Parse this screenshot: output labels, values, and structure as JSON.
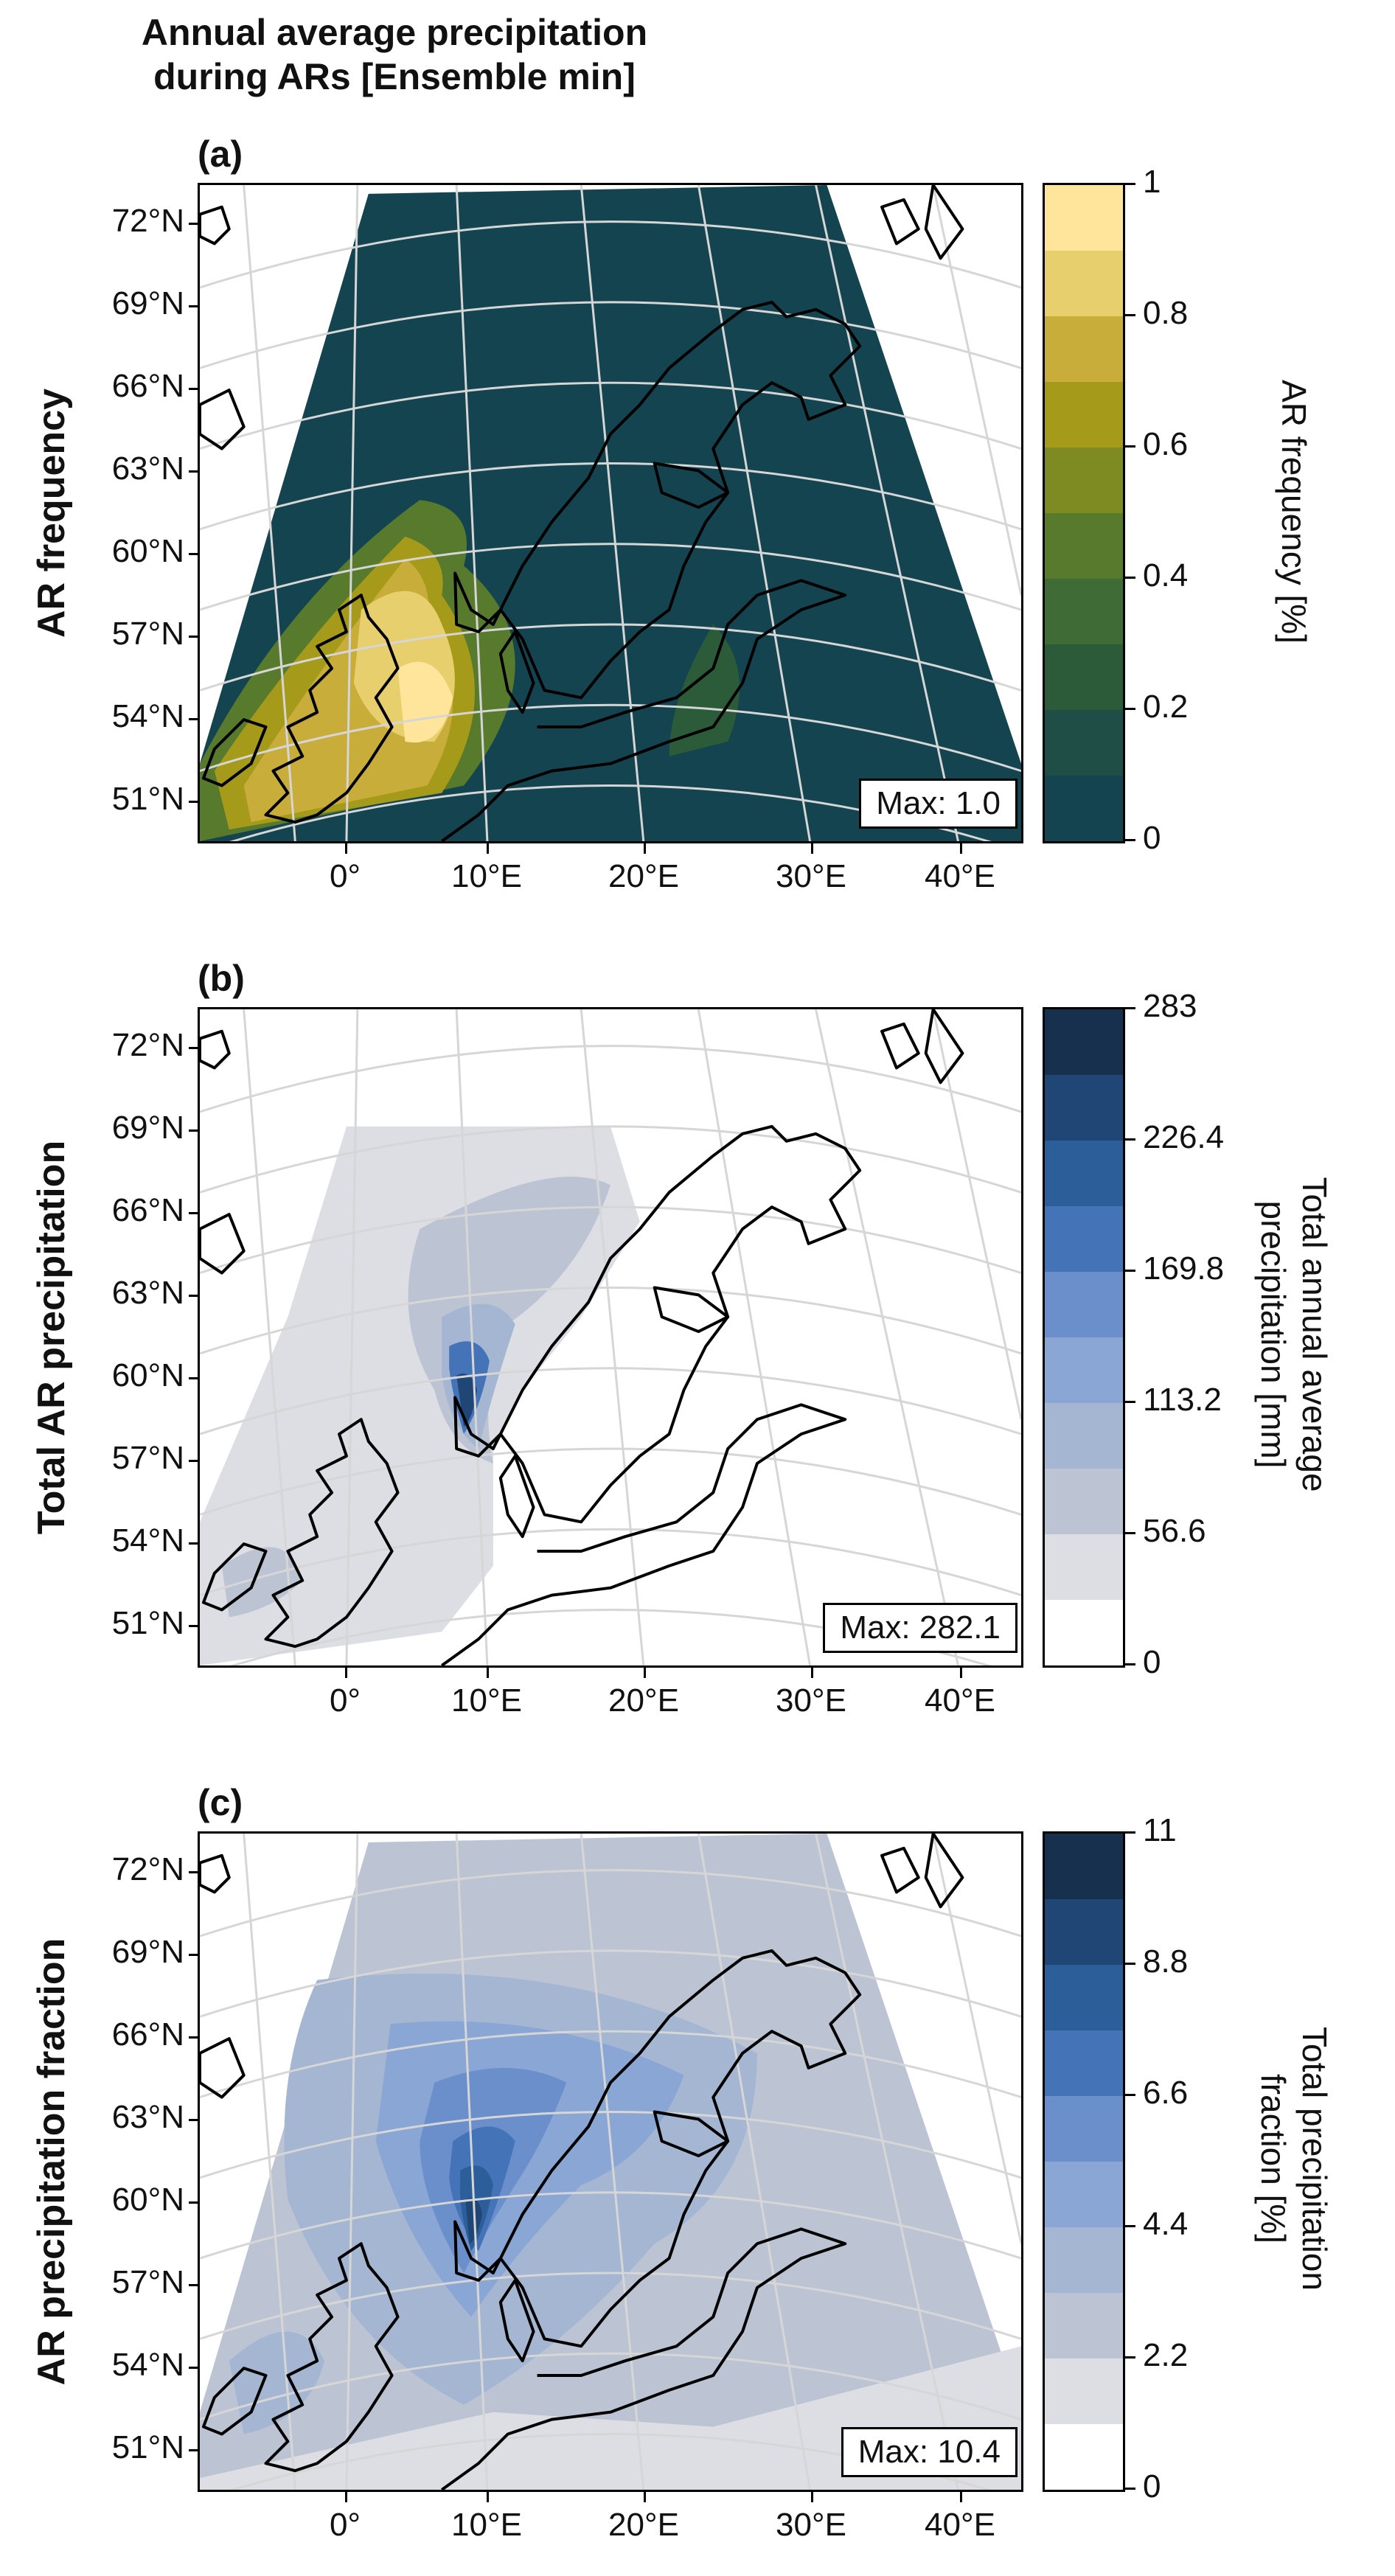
{
  "figure": {
    "title_line1": "Annual average precipitation",
    "title_line2": "during ARs [Ensemble min]"
  },
  "axes": {
    "lat_labels": [
      "72°N",
      "69°N",
      "66°N",
      "63°N",
      "60°N",
      "57°N",
      "54°N",
      "51°N"
    ],
    "lon_labels": [
      "0°",
      "10°E",
      "20°E",
      "30°E",
      "40°E"
    ]
  },
  "panels": [
    {
      "id": "a",
      "letter": "(a)",
      "row_label": "AR frequency",
      "colorbar_label": "AR frequency [%]",
      "colorbar_ticks": [
        "1",
        "0.8",
        "0.6",
        "0.4",
        "0.2",
        "0"
      ],
      "colors": [
        "#ffe59b",
        "#e8cf6d",
        "#c9ad3b",
        "#a59a1a",
        "#7d8b22",
        "#577a2d",
        "#3f6b36",
        "#2c5b3a",
        "#1f4e46",
        "#134450"
      ],
      "max_text": "Max: 1.0"
    },
    {
      "id": "b",
      "letter": "(b)",
      "row_label": "Total AR precipitation",
      "colorbar_label_line1": "Total annual average",
      "colorbar_label_line2": "precipitation [mm]",
      "colorbar_ticks": [
        "283",
        "226.4",
        "169.8",
        "113.2",
        "56.6",
        "0"
      ],
      "colors": [
        "#16304e",
        "#1f4675",
        "#2c5f9a",
        "#4474b7",
        "#6a8fcb",
        "#8aa6d4",
        "#a5b6d3",
        "#bcc4d4",
        "#dcdee3",
        "#ffffff"
      ],
      "max_text": "Max: 282.1"
    },
    {
      "id": "c",
      "letter": "(c)",
      "row_label": "AR precipitation fraction",
      "colorbar_label_line1": "Total precipitation",
      "colorbar_label_line2": "fraction [%]",
      "colorbar_ticks": [
        "11",
        "8.8",
        "6.6",
        "4.4",
        "2.2",
        "0"
      ],
      "colors": [
        "#16304e",
        "#1f4675",
        "#2c5f9a",
        "#4474b7",
        "#6a8fcb",
        "#8aa6d4",
        "#a5b6d3",
        "#bcc4d4",
        "#dcdee3",
        "#ffffff"
      ],
      "max_text": "Max: 10.4"
    }
  ]
}
